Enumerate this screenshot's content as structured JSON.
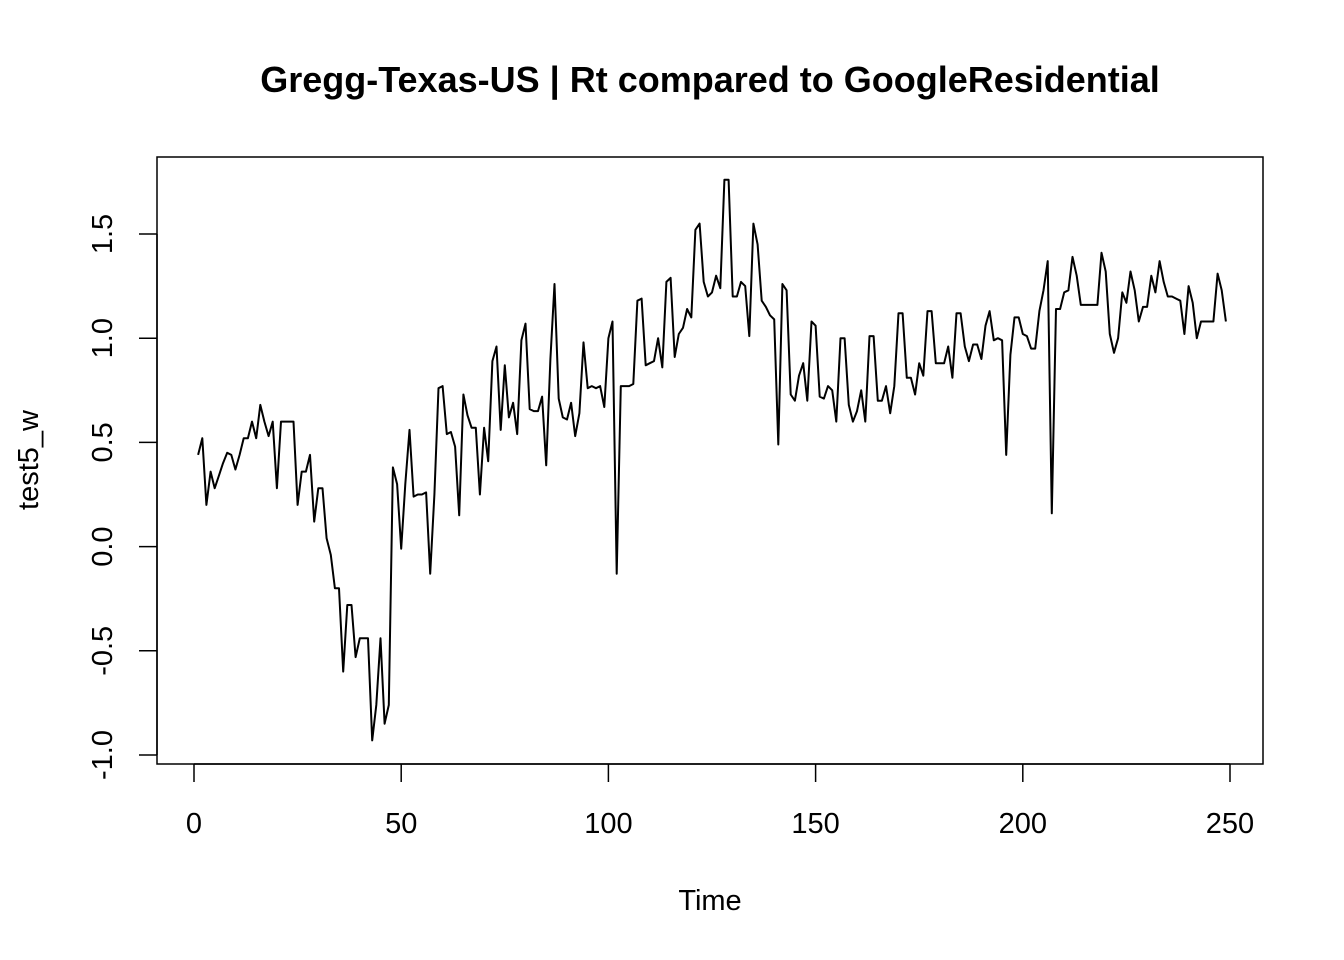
{
  "chart_data": {
    "type": "line",
    "title": "Gregg-Texas-US | Rt compared to GoogleResidential",
    "xlabel": "Time",
    "ylabel": "test5_w",
    "xlim": [
      0,
      250
    ],
    "ylim": [
      -1.0,
      1.75
    ],
    "x_ticks": [
      0,
      50,
      100,
      150,
      200,
      250
    ],
    "y_ticks": [
      -1.0,
      -0.5,
      0.0,
      0.5,
      1.0,
      1.5
    ],
    "x_tick_labels": [
      "0",
      "50",
      "100",
      "150",
      "200",
      "250"
    ],
    "y_tick_labels": [
      "-1.0",
      "-0.5",
      "0.0",
      "0.5",
      "1.0",
      "1.5"
    ],
    "grid": false,
    "series": [
      {
        "color": "#000000",
        "values": [
          [
            1,
            0.44
          ],
          [
            2,
            0.52
          ],
          [
            3,
            0.2
          ],
          [
            4,
            0.36
          ],
          [
            5,
            0.28
          ],
          [
            6,
            0.34
          ],
          [
            7,
            0.4
          ],
          [
            8,
            0.45
          ],
          [
            9,
            0.44
          ],
          [
            10,
            0.37
          ],
          [
            11,
            0.44
          ],
          [
            12,
            0.52
          ],
          [
            13,
            0.52
          ],
          [
            14,
            0.6
          ],
          [
            15,
            0.52
          ],
          [
            16,
            0.68
          ],
          [
            17,
            0.6
          ],
          [
            18,
            0.53
          ],
          [
            19,
            0.6
          ],
          [
            20,
            0.28
          ],
          [
            21,
            0.6
          ],
          [
            22,
            0.6
          ],
          [
            23,
            0.6
          ],
          [
            24,
            0.6
          ],
          [
            25,
            0.2
          ],
          [
            26,
            0.36
          ],
          [
            27,
            0.36
          ],
          [
            28,
            0.44
          ],
          [
            29,
            0.12
          ],
          [
            30,
            0.28
          ],
          [
            31,
            0.28
          ],
          [
            32,
            0.04
          ],
          [
            33,
            -0.04
          ],
          [
            34,
            -0.2
          ],
          [
            35,
            -0.2
          ],
          [
            36,
            -0.6
          ],
          [
            37,
            -0.28
          ],
          [
            38,
            -0.28
          ],
          [
            39,
            -0.53
          ],
          [
            40,
            -0.44
          ],
          [
            41,
            -0.44
          ],
          [
            42,
            -0.44
          ],
          [
            43,
            -0.93
          ],
          [
            44,
            -0.76
          ],
          [
            45,
            -0.44
          ],
          [
            46,
            -0.85
          ],
          [
            47,
            -0.76
          ],
          [
            48,
            0.38
          ],
          [
            49,
            0.3
          ],
          [
            50,
            -0.01
          ],
          [
            51,
            0.3
          ],
          [
            52,
            0.56
          ],
          [
            53,
            0.24
          ],
          [
            54,
            0.25
          ],
          [
            55,
            0.25
          ],
          [
            56,
            0.26
          ],
          [
            57,
            -0.13
          ],
          [
            58,
            0.25
          ],
          [
            59,
            0.76
          ],
          [
            60,
            0.77
          ],
          [
            61,
            0.54
          ],
          [
            62,
            0.55
          ],
          [
            63,
            0.48
          ],
          [
            64,
            0.15
          ],
          [
            65,
            0.73
          ],
          [
            66,
            0.63
          ],
          [
            67,
            0.57
          ],
          [
            68,
            0.57
          ],
          [
            69,
            0.25
          ],
          [
            70,
            0.57
          ],
          [
            71,
            0.41
          ],
          [
            72,
            0.89
          ],
          [
            73,
            0.96
          ],
          [
            74,
            0.56
          ],
          [
            75,
            0.87
          ],
          [
            76,
            0.62
          ],
          [
            77,
            0.69
          ],
          [
            78,
            0.54
          ],
          [
            79,
            0.99
          ],
          [
            80,
            1.07
          ],
          [
            81,
            0.66
          ],
          [
            82,
            0.65
          ],
          [
            83,
            0.65
          ],
          [
            84,
            0.72
          ],
          [
            85,
            0.39
          ],
          [
            86,
            0.9
          ],
          [
            87,
            1.26
          ],
          [
            88,
            0.71
          ],
          [
            89,
            0.62
          ],
          [
            90,
            0.61
          ],
          [
            91,
            0.69
          ],
          [
            92,
            0.53
          ],
          [
            93,
            0.64
          ],
          [
            94,
            0.98
          ],
          [
            95,
            0.76
          ],
          [
            96,
            0.77
          ],
          [
            97,
            0.76
          ],
          [
            98,
            0.77
          ],
          [
            99,
            0.67
          ],
          [
            100,
            1.0
          ],
          [
            101,
            1.08
          ],
          [
            102,
            -0.13
          ],
          [
            103,
            0.77
          ],
          [
            104,
            0.77
          ],
          [
            105,
            0.77
          ],
          [
            106,
            0.78
          ],
          [
            107,
            1.18
          ],
          [
            108,
            1.19
          ],
          [
            109,
            0.87
          ],
          [
            110,
            0.88
          ],
          [
            111,
            0.89
          ],
          [
            112,
            1.0
          ],
          [
            113,
            0.86
          ],
          [
            114,
            1.27
          ],
          [
            115,
            1.29
          ],
          [
            116,
            0.91
          ],
          [
            117,
            1.02
          ],
          [
            118,
            1.05
          ],
          [
            119,
            1.14
          ],
          [
            120,
            1.1
          ],
          [
            121,
            1.52
          ],
          [
            122,
            1.55
          ],
          [
            123,
            1.27
          ],
          [
            124,
            1.2
          ],
          [
            125,
            1.22
          ],
          [
            126,
            1.3
          ],
          [
            127,
            1.24
          ],
          [
            128,
            1.76
          ],
          [
            129,
            1.76
          ],
          [
            130,
            1.2
          ],
          [
            131,
            1.2
          ],
          [
            132,
            1.27
          ],
          [
            133,
            1.25
          ],
          [
            134,
            1.01
          ],
          [
            135,
            1.55
          ],
          [
            136,
            1.45
          ],
          [
            137,
            1.18
          ],
          [
            138,
            1.15
          ],
          [
            139,
            1.11
          ],
          [
            140,
            1.09
          ],
          [
            141,
            0.49
          ],
          [
            142,
            1.26
          ],
          [
            143,
            1.23
          ],
          [
            144,
            0.73
          ],
          [
            145,
            0.7
          ],
          [
            146,
            0.82
          ],
          [
            147,
            0.88
          ],
          [
            148,
            0.7
          ],
          [
            149,
            1.08
          ],
          [
            150,
            1.06
          ],
          [
            151,
            0.72
          ],
          [
            152,
            0.71
          ],
          [
            153,
            0.77
          ],
          [
            154,
            0.75
          ],
          [
            155,
            0.6
          ],
          [
            156,
            1.0
          ],
          [
            157,
            1.0
          ],
          [
            158,
            0.68
          ],
          [
            159,
            0.6
          ],
          [
            160,
            0.65
          ],
          [
            161,
            0.75
          ],
          [
            162,
            0.6
          ],
          [
            163,
            1.01
          ],
          [
            164,
            1.01
          ],
          [
            165,
            0.7
          ],
          [
            166,
            0.7
          ],
          [
            167,
            0.77
          ],
          [
            168,
            0.64
          ],
          [
            169,
            0.77
          ],
          [
            170,
            1.12
          ],
          [
            171,
            1.12
          ],
          [
            172,
            0.81
          ],
          [
            173,
            0.81
          ],
          [
            174,
            0.73
          ],
          [
            175,
            0.88
          ],
          [
            176,
            0.82
          ],
          [
            177,
            1.13
          ],
          [
            178,
            1.13
          ],
          [
            179,
            0.88
          ],
          [
            180,
            0.88
          ],
          [
            181,
            0.88
          ],
          [
            182,
            0.96
          ],
          [
            183,
            0.81
          ],
          [
            184,
            1.12
          ],
          [
            185,
            1.12
          ],
          [
            186,
            0.96
          ],
          [
            187,
            0.89
          ],
          [
            188,
            0.97
          ],
          [
            189,
            0.97
          ],
          [
            190,
            0.9
          ],
          [
            191,
            1.06
          ],
          [
            192,
            1.13
          ],
          [
            193,
            0.99
          ],
          [
            194,
            1.0
          ],
          [
            195,
            0.99
          ],
          [
            196,
            0.44
          ],
          [
            197,
            0.92
          ],
          [
            198,
            1.1
          ],
          [
            199,
            1.1
          ],
          [
            200,
            1.02
          ],
          [
            201,
            1.01
          ],
          [
            202,
            0.95
          ],
          [
            203,
            0.95
          ],
          [
            204,
            1.13
          ],
          [
            205,
            1.23
          ],
          [
            206,
            1.37
          ],
          [
            207,
            0.16
          ],
          [
            208,
            1.14
          ],
          [
            209,
            1.14
          ],
          [
            210,
            1.22
          ],
          [
            211,
            1.23
          ],
          [
            212,
            1.39
          ],
          [
            213,
            1.3
          ],
          [
            214,
            1.16
          ],
          [
            215,
            1.16
          ],
          [
            216,
            1.16
          ],
          [
            217,
            1.16
          ],
          [
            218,
            1.16
          ],
          [
            219,
            1.41
          ],
          [
            220,
            1.32
          ],
          [
            221,
            1.02
          ],
          [
            222,
            0.93
          ],
          [
            223,
            1.0
          ],
          [
            224,
            1.22
          ],
          [
            225,
            1.17
          ],
          [
            226,
            1.32
          ],
          [
            227,
            1.23
          ],
          [
            228,
            1.08
          ],
          [
            229,
            1.15
          ],
          [
            230,
            1.15
          ],
          [
            231,
            1.3
          ],
          [
            232,
            1.22
          ],
          [
            233,
            1.37
          ],
          [
            234,
            1.27
          ],
          [
            235,
            1.2
          ],
          [
            236,
            1.2
          ],
          [
            237,
            1.19
          ],
          [
            238,
            1.18
          ],
          [
            239,
            1.02
          ],
          [
            240,
            1.25
          ],
          [
            241,
            1.17
          ],
          [
            242,
            1.0
          ],
          [
            243,
            1.08
          ],
          [
            244,
            1.08
          ],
          [
            245,
            1.08
          ],
          [
            246,
            1.08
          ],
          [
            247,
            1.31
          ],
          [
            248,
            1.23
          ],
          [
            249,
            1.08
          ]
        ]
      }
    ]
  }
}
